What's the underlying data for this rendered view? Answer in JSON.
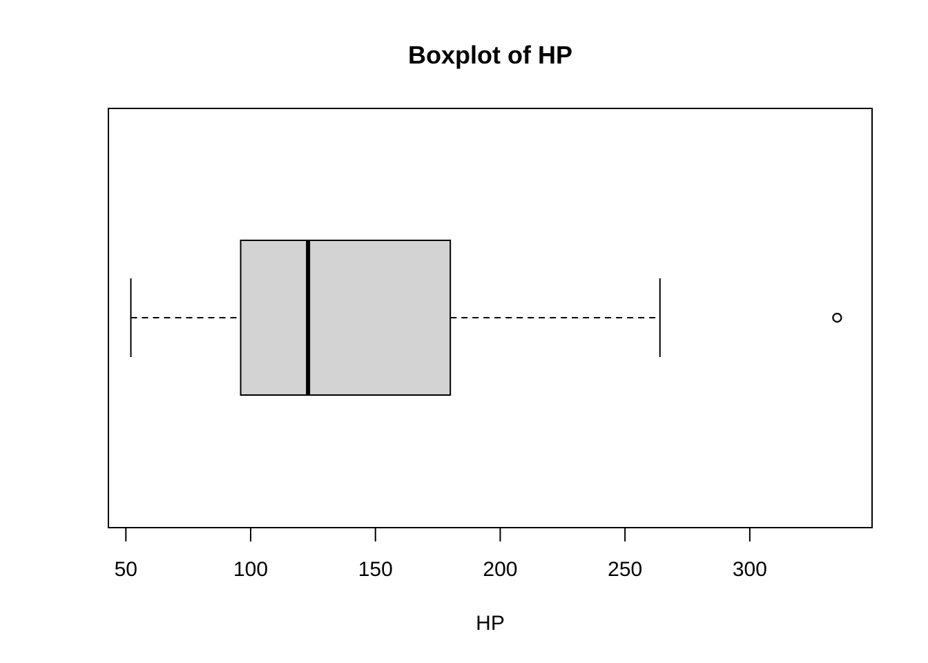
{
  "chart_data": {
    "type": "boxplot",
    "orientation": "horizontal",
    "title": "Boxplot of HP",
    "xlabel": "HP",
    "ylabel": "",
    "xlim": [
      43,
      349
    ],
    "ticks": [
      50,
      100,
      150,
      200,
      250,
      300
    ],
    "tick_labels": [
      "50",
      "100",
      "150",
      "200",
      "250",
      "300"
    ],
    "box": {
      "whisker_low": 52,
      "q1": 96,
      "median": 123,
      "q3": 180,
      "whisker_high": 264,
      "outliers": [
        335
      ]
    },
    "grid": false,
    "legend": "none",
    "colors": {
      "box_fill": "#d3d3d3",
      "stroke": "#000000",
      "background": "#ffffff"
    }
  }
}
